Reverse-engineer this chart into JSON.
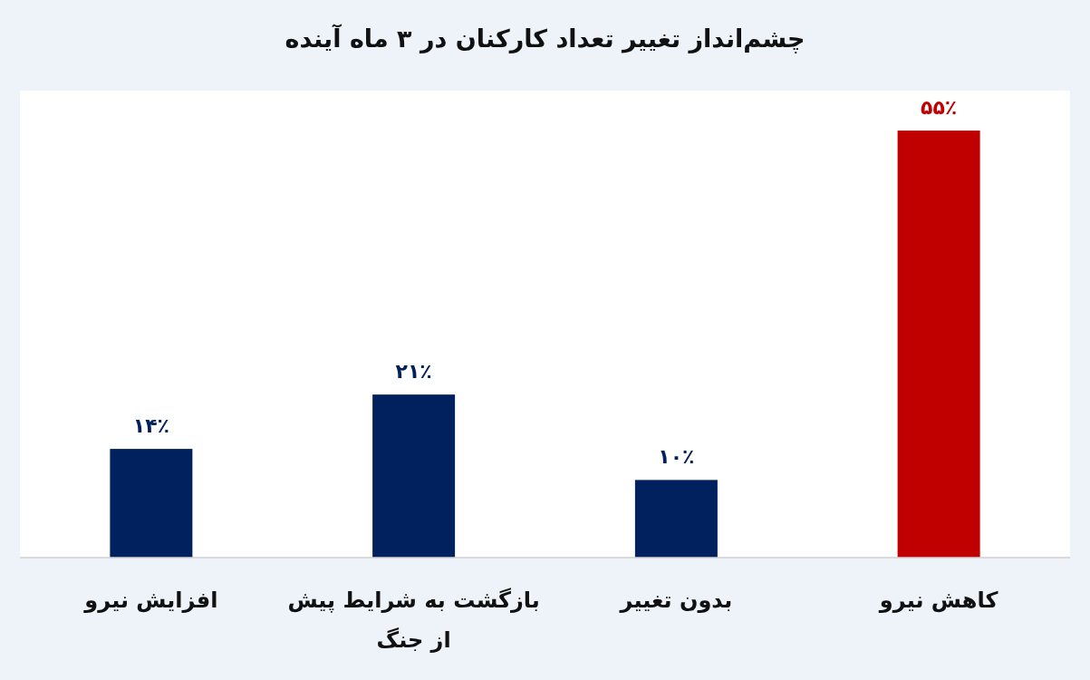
{
  "chart_data": {
    "type": "bar",
    "title": "چشم‌انداز تغییر تعداد کارکنان در ۳ ماه آینده",
    "categories": [
      "افزایش نیرو",
      "بازگشت به شرایط پیش از جنگ",
      "بدون تغییر",
      "کاهش نیرو"
    ],
    "values": [
      14,
      21,
      10,
      55
    ],
    "colors": [
      "#00215e",
      "#00215e",
      "#00215e",
      "#c00000"
    ],
    "value_labels": [
      "۱۴٪",
      "۲۱٪",
      "۱۰٪",
      "۵۵٪"
    ]
  }
}
